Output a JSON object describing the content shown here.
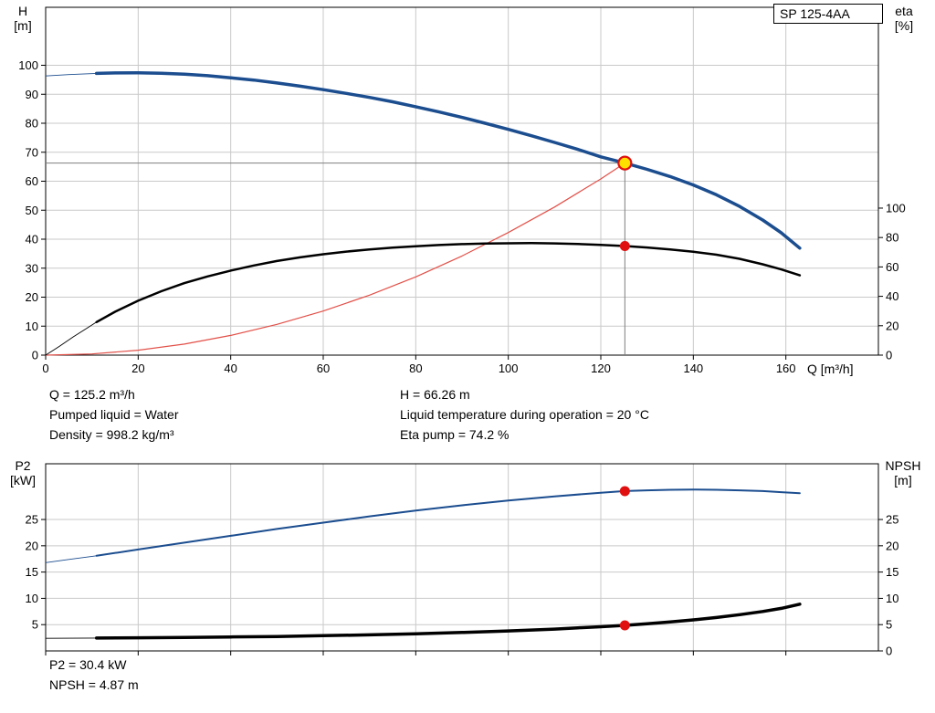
{
  "colors": {
    "grid": "#c9c9c9",
    "frame": "#000000",
    "crosshair": "#7f7f7f",
    "duty_marker_fill": "#ffdf00",
    "duty_marker_stroke": "#e01010",
    "dot_marker": "#e01010"
  },
  "chart_data": [
    {
      "type": "line",
      "title": "SP 125-4AA",
      "x": {
        "label": "Q [m³/h]",
        "min": 0,
        "max": 180,
        "ticks": [
          0,
          20,
          40,
          60,
          80,
          100,
          120,
          140,
          160
        ],
        "tick_labels": true
      },
      "y_left": {
        "name": "H",
        "unit": "[m]",
        "min": 0,
        "max": 120,
        "ticks": [
          0,
          10,
          20,
          30,
          40,
          50,
          60,
          70,
          80,
          90,
          100
        ]
      },
      "y_right": {
        "name": "eta",
        "unit": "[%]",
        "min": 0,
        "max": 236.6,
        "ticks": [
          0,
          20,
          40,
          60,
          80,
          100
        ]
      },
      "series": [
        {
          "name": "system-curve",
          "axis": "left",
          "color": "#e25048",
          "width": 1.2,
          "thin_until": null,
          "points": [
            [
              0,
              0
            ],
            [
              10,
              0.4
            ],
            [
              20,
              1.7
            ],
            [
              30,
              3.8
            ],
            [
              40,
              6.8
            ],
            [
              50,
              10.6
            ],
            [
              60,
              15.2
            ],
            [
              70,
              20.7
            ],
            [
              80,
              27
            ],
            [
              90,
              34.2
            ],
            [
              100,
              42.3
            ],
            [
              110,
              51.1
            ],
            [
              120,
              60.8
            ],
            [
              125.2,
              66.26
            ]
          ]
        },
        {
          "name": "efficiency-curve",
          "axis": "right",
          "color": "#000000",
          "width": 2.5,
          "thin_until": 11,
          "points": [
            [
              0,
              0
            ],
            [
              3,
              6
            ],
            [
              6,
              12.5
            ],
            [
              9,
              18.5
            ],
            [
              11,
              22.5
            ],
            [
              15,
              29.5
            ],
            [
              20,
              37
            ],
            [
              25,
              43.5
            ],
            [
              30,
              49
            ],
            [
              35,
              53.5
            ],
            [
              40,
              57.5
            ],
            [
              45,
              61
            ],
            [
              50,
              64
            ],
            [
              55,
              66.5
            ],
            [
              60,
              68.6
            ],
            [
              65,
              70.4
            ],
            [
              70,
              71.9
            ],
            [
              75,
              73.1
            ],
            [
              80,
              74.1
            ],
            [
              85,
              74.9
            ],
            [
              90,
              75.5
            ],
            [
              95,
              75.9
            ],
            [
              100,
              76.1
            ],
            [
              105,
              76.2
            ],
            [
              110,
              76
            ],
            [
              115,
              75.6
            ],
            [
              120,
              75
            ],
            [
              125.2,
              74.2
            ],
            [
              130,
              73.2
            ],
            [
              135,
              71.9
            ],
            [
              140,
              70.3
            ],
            [
              145,
              68.3
            ],
            [
              150,
              65.5
            ],
            [
              155,
              61.8
            ],
            [
              159,
              58.3
            ],
            [
              163,
              54.3
            ]
          ]
        },
        {
          "name": "pump-head-curve",
          "axis": "left",
          "color": "#1b4d8f",
          "width": 3.5,
          "thin_until": 11,
          "points": [
            [
              0,
              96.3
            ],
            [
              5,
              96.8
            ],
            [
              11,
              97.2
            ],
            [
              15,
              97.35
            ],
            [
              20,
              97.4
            ],
            [
              25,
              97.25
            ],
            [
              30,
              96.9
            ],
            [
              35,
              96.4
            ],
            [
              40,
              95.7
            ],
            [
              45,
              94.9
            ],
            [
              50,
              93.9
            ],
            [
              55,
              92.8
            ],
            [
              60,
              91.6
            ],
            [
              65,
              90.3
            ],
            [
              70,
              88.9
            ],
            [
              75,
              87.4
            ],
            [
              80,
              85.7
            ],
            [
              85,
              83.9
            ],
            [
              90,
              82
            ],
            [
              95,
              80
            ],
            [
              100,
              77.9
            ],
            [
              105,
              75.7
            ],
            [
              110,
              73.4
            ],
            [
              115,
              71
            ],
            [
              120,
              68.4
            ],
            [
              125.2,
              66.26
            ],
            [
              130,
              64.1
            ],
            [
              135,
              61.6
            ],
            [
              140,
              58.7
            ],
            [
              145,
              55.3
            ],
            [
              150,
              51.3
            ],
            [
              155,
              46.6
            ],
            [
              159,
              42.2
            ],
            [
              163,
              36.9
            ]
          ]
        }
      ],
      "crosshair": {
        "x": 125.2,
        "value": 66.26,
        "axis": "left"
      },
      "markers": [
        {
          "type": "duty",
          "x": 125.2,
          "value": 66.26,
          "axis": "left"
        },
        {
          "type": "dot",
          "x": 125.2,
          "value": 74.2,
          "axis": "right"
        }
      ],
      "annotations": {
        "left": [
          "Q = 125.2 m³/h",
          "Pumped liquid = Water",
          "Density = 998.2 kg/m³"
        ],
        "right": [
          "H = 66.26 m",
          "Liquid temperature during operation = 20 °C",
          "Eta pump = 74.2 %"
        ]
      }
    },
    {
      "type": "line",
      "x": {
        "label": "",
        "min": 0,
        "max": 180,
        "ticks": [
          0,
          20,
          40,
          60,
          80,
          100,
          120,
          140,
          160
        ],
        "tick_labels": false
      },
      "y_left": {
        "name": "P2",
        "unit": "[kW]",
        "min": 0,
        "max": 35.6,
        "ticks": [
          5,
          10,
          15,
          20,
          25
        ]
      },
      "y_right": {
        "name": "NPSH",
        "unit": "[m]",
        "min": 0,
        "max": 35.6,
        "ticks": [
          0,
          5,
          10,
          15,
          20,
          25
        ]
      },
      "series": [
        {
          "name": "p2-power-curve",
          "axis": "left",
          "color": "#1b4d8f",
          "width": 2,
          "thin_until": 11,
          "points": [
            [
              0,
              16.8
            ],
            [
              5,
              17.4
            ],
            [
              11,
              18.1
            ],
            [
              20,
              19.3
            ],
            [
              30,
              20.6
            ],
            [
              40,
              21.9
            ],
            [
              50,
              23.2
            ],
            [
              60,
              24.4
            ],
            [
              70,
              25.6
            ],
            [
              80,
              26.7
            ],
            [
              90,
              27.7
            ],
            [
              100,
              28.6
            ],
            [
              110,
              29.4
            ],
            [
              120,
              30.1
            ],
            [
              125.2,
              30.4
            ],
            [
              130,
              30.55
            ],
            [
              135,
              30.65
            ],
            [
              140,
              30.7
            ],
            [
              145,
              30.65
            ],
            [
              150,
              30.55
            ],
            [
              155,
              30.4
            ],
            [
              159,
              30.2
            ],
            [
              163,
              30
            ]
          ]
        },
        {
          "name": "npsh-curve",
          "axis": "right",
          "color": "#000000",
          "width": 3.5,
          "thin_until": 11,
          "points": [
            [
              0,
              2.4
            ],
            [
              11,
              2.45
            ],
            [
              20,
              2.5
            ],
            [
              30,
              2.55
            ],
            [
              40,
              2.65
            ],
            [
              50,
              2.75
            ],
            [
              60,
              2.9
            ],
            [
              70,
              3.05
            ],
            [
              80,
              3.25
            ],
            [
              90,
              3.5
            ],
            [
              100,
              3.8
            ],
            [
              110,
              4.15
            ],
            [
              115,
              4.4
            ],
            [
              120,
              4.6
            ],
            [
              125.2,
              4.87
            ],
            [
              130,
              5.15
            ],
            [
              135,
              5.5
            ],
            [
              140,
              5.9
            ],
            [
              145,
              6.35
            ],
            [
              150,
              6.9
            ],
            [
              155,
              7.5
            ],
            [
              159,
              8.1
            ],
            [
              163,
              8.9
            ]
          ]
        }
      ],
      "crosshair": null,
      "markers": [
        {
          "type": "dot",
          "x": 125.2,
          "value": 30.4,
          "axis": "left"
        },
        {
          "type": "dot",
          "x": 125.2,
          "value": 4.87,
          "axis": "right"
        }
      ],
      "annotations": {
        "left": [
          "P2 = 30.4 kW",
          "NPSH = 4.87 m"
        ]
      }
    }
  ]
}
